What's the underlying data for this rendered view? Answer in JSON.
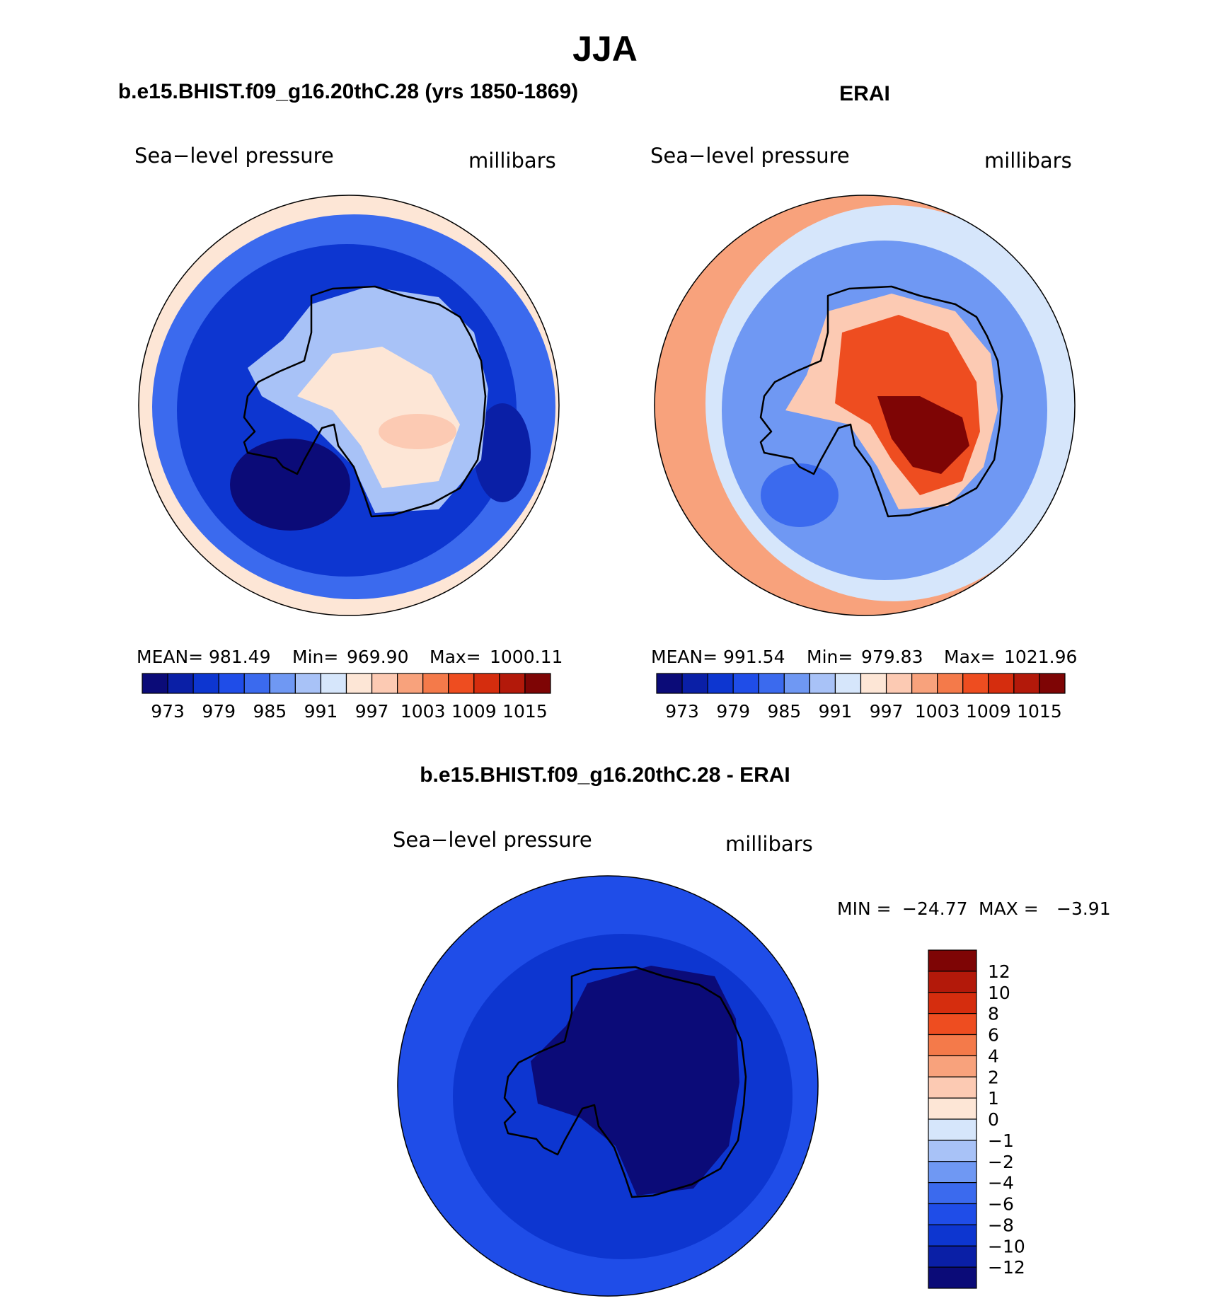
{
  "figure_title": "JJA",
  "colors": {
    "palette_abs": [
      "#0b0b78",
      "#0a1fa6",
      "#0d36d0",
      "#1f4de8",
      "#3b6aee",
      "#6f98f3",
      "#a8c2f7",
      "#d6e6fb",
      "#fde6d6",
      "#fccab3",
      "#f8a27c",
      "#f47a4a",
      "#ee4d20",
      "#d52d0e",
      "#b3190a",
      "#7e0505"
    ],
    "palette_diff": [
      "#0b0b78",
      "#0a1fa6",
      "#0d36d0",
      "#1f4de8",
      "#3b6aee",
      "#6f98f3",
      "#a8c2f7",
      "#d6e6fb",
      "#fde6d6",
      "#fccab3",
      "#f8a27c",
      "#f47a4a",
      "#ee4d20",
      "#d52d0e",
      "#b3190a",
      "#7e0505"
    ]
  },
  "chart_data": [
    {
      "type": "heatmap",
      "projection": "south-polar stereographic",
      "title": "b.e15.BHIST.f09_g16.20thC.28 (yrs 1850-1869)",
      "field_label": "Sea−level pressure",
      "units_label": "millibars",
      "stats": {
        "mean_label": "MEAN=",
        "mean": "981.49",
        "min_label": "Min=",
        "min": "969.90",
        "max_label": "Max=",
        "max": "1000.11"
      },
      "colorbar_ticks": [
        "973",
        "979",
        "985",
        "991",
        "997",
        "1003",
        "1009",
        "1015"
      ],
      "levels": [
        970,
        973,
        976,
        979,
        982,
        985,
        988,
        991,
        994,
        997,
        1000,
        1003,
        1006,
        1009,
        1012,
        1015,
        1018
      ],
      "regions": [
        {
          "name": "outer-ring-pacific",
          "value": 996
        },
        {
          "name": "ocean-belt",
          "value": 984
        },
        {
          "name": "inner-ocean",
          "value": 978
        },
        {
          "name": "amundsen-low",
          "value": 971
        },
        {
          "name": "weddell-low",
          "value": 975
        },
        {
          "name": "continent-edge",
          "value": 988
        },
        {
          "name": "interior",
          "value": 995
        },
        {
          "name": "plateau-high",
          "value": 999
        }
      ]
    },
    {
      "type": "heatmap",
      "projection": "south-polar stereographic",
      "title": "ERAI",
      "field_label": "Sea−level pressure",
      "units_label": "millibars",
      "stats": {
        "mean_label": "MEAN=",
        "mean": "991.54",
        "min_label": "Min=",
        "min": "979.83",
        "max_label": "Max=",
        "max": "1021.96"
      },
      "colorbar_ticks": [
        "973",
        "979",
        "985",
        "991",
        "997",
        "1003",
        "1009",
        "1015"
      ],
      "levels": [
        970,
        973,
        976,
        979,
        982,
        985,
        988,
        991,
        994,
        997,
        1000,
        1003,
        1006,
        1009,
        1012,
        1015,
        1018
      ],
      "regions": [
        {
          "name": "outer-ring-pacific",
          "value": 1002
        },
        {
          "name": "ocean-belt",
          "value": 991
        },
        {
          "name": "inner-ocean",
          "value": 986
        },
        {
          "name": "amundsen-low",
          "value": 983
        },
        {
          "name": "continent-edge",
          "value": 997
        },
        {
          "name": "interior",
          "value": 1006
        },
        {
          "name": "plateau-high",
          "value": 1016
        }
      ]
    },
    {
      "type": "heatmap",
      "projection": "south-polar stereographic",
      "title": "b.e15.BHIST.f09_g16.20thC.28 - ERAI",
      "field_label": "Sea−level pressure",
      "units_label": "millibars",
      "stats": {
        "min_label": "MIN =",
        "min": "−24.77",
        "max_label": "MAX =",
        "max": "−3.91"
      },
      "colorbar_ticks": [
        "12",
        "10",
        "8",
        "6",
        "4",
        "2",
        "1",
        "0",
        "−1",
        "−2",
        "−4",
        "−6",
        "−8",
        "−10",
        "−12"
      ],
      "levels": [
        -14,
        -12,
        -10,
        -8,
        -6,
        -4,
        -2,
        -1,
        0,
        1,
        2,
        4,
        6,
        8,
        10,
        12,
        14
      ],
      "regions": [
        {
          "name": "outer-ocean",
          "value": -8
        },
        {
          "name": "inner-ocean",
          "value": -10
        },
        {
          "name": "continent",
          "value": -20
        }
      ]
    }
  ]
}
